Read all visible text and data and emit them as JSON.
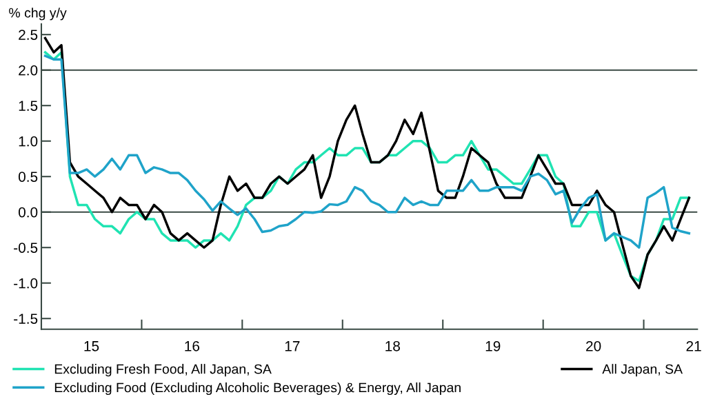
{
  "chart_data": {
    "type": "line",
    "ylabel": "% chg y/y",
    "x": [
      "2015-01-15",
      "2015-02-15",
      "2015-03-15",
      "2015-04-15",
      "2015-05-15",
      "2015-06-15",
      "2015-07-15",
      "2015-08-15",
      "2015-09-15",
      "2015-10-15",
      "2015-11-15",
      "2015-12-15",
      "2016-01-15",
      "2016-02-15",
      "2016-03-15",
      "2016-04-15",
      "2016-05-15",
      "2016-06-15",
      "2016-07-15",
      "2016-08-15",
      "2016-09-15",
      "2016-10-15",
      "2016-11-15",
      "2016-12-15",
      "2017-01-15",
      "2017-02-15",
      "2017-03-15",
      "2017-04-15",
      "2017-05-15",
      "2017-06-15",
      "2017-07-15",
      "2017-08-15",
      "2017-09-15",
      "2017-10-15",
      "2017-11-15",
      "2017-12-15",
      "2018-01-15",
      "2018-02-15",
      "2018-03-15",
      "2018-04-15",
      "2018-05-15",
      "2018-06-15",
      "2018-07-15",
      "2018-08-15",
      "2018-09-15",
      "2018-10-15",
      "2018-11-15",
      "2018-12-15",
      "2019-01-15",
      "2019-02-15",
      "2019-03-15",
      "2019-04-15",
      "2019-05-15",
      "2019-06-15",
      "2019-07-15",
      "2019-08-15",
      "2019-09-15",
      "2019-10-15",
      "2019-11-15",
      "2019-12-15",
      "2020-01-15",
      "2020-02-15",
      "2020-03-15",
      "2020-04-15",
      "2020-05-15",
      "2020-06-15",
      "2020-07-15",
      "2020-08-15",
      "2020-09-15",
      "2020-10-15",
      "2020-11-15",
      "2020-12-15",
      "2021-01-15",
      "2021-02-15",
      "2021-03-15",
      "2021-04-15",
      "2021-05-15",
      "2021-06-15"
    ],
    "series": [
      {
        "name": "Excluding Fresh Food, All Japan, SA",
        "color": "#20e3b2",
        "values": [
          2.25,
          2.15,
          2.25,
          0.5,
          0.1,
          0.1,
          -0.1,
          -0.2,
          -0.2,
          -0.3,
          -0.1,
          0.0,
          -0.1,
          -0.1,
          -0.3,
          -0.4,
          -0.4,
          -0.4,
          -0.5,
          -0.4,
          -0.4,
          -0.3,
          -0.4,
          -0.2,
          0.1,
          0.2,
          0.2,
          0.3,
          0.5,
          0.4,
          0.6,
          0.7,
          0.7,
          0.8,
          0.9,
          0.8,
          0.8,
          0.9,
          0.9,
          0.7,
          0.7,
          0.8,
          0.8,
          0.9,
          1.0,
          1.0,
          0.9,
          0.7,
          0.7,
          0.8,
          0.8,
          1.0,
          0.8,
          0.6,
          0.6,
          0.5,
          0.4,
          0.4,
          0.6,
          0.8,
          0.8,
          0.5,
          0.4,
          -0.2,
          -0.2,
          0.0,
          0.0,
          -0.4,
          -0.3,
          -0.6,
          -0.9,
          -0.97,
          -0.6,
          -0.4,
          -0.1,
          -0.1,
          0.2,
          0.2
        ]
      },
      {
        "name": "All Japan, SA",
        "color": "#000000",
        "values": [
          2.45,
          2.25,
          2.35,
          0.7,
          0.5,
          0.4,
          0.3,
          0.2,
          0.0,
          0.2,
          0.1,
          0.1,
          -0.1,
          0.1,
          0.0,
          -0.3,
          -0.4,
          -0.3,
          -0.4,
          -0.5,
          -0.4,
          0.1,
          0.5,
          0.3,
          0.4,
          0.2,
          0.2,
          0.4,
          0.5,
          0.4,
          0.5,
          0.6,
          0.8,
          0.2,
          0.5,
          1.0,
          1.3,
          1.5,
          1.1,
          0.7,
          0.7,
          0.8,
          1.0,
          1.3,
          1.1,
          1.4,
          0.85,
          0.3,
          0.2,
          0.2,
          0.5,
          0.9,
          0.8,
          0.7,
          0.4,
          0.2,
          0.2,
          0.2,
          0.5,
          0.8,
          0.6,
          0.4,
          0.4,
          0.1,
          0.1,
          0.1,
          0.3,
          0.1,
          0.0,
          -0.45,
          -0.9,
          -1.07,
          -0.6,
          -0.4,
          -0.2,
          -0.4,
          -0.1,
          0.2
        ]
      },
      {
        "name": "Excluding Food (Excluding Alcoholic Beverages) & Energy, All Japan",
        "color": "#1fa3c9",
        "values": [
          2.2,
          2.15,
          2.15,
          0.55,
          0.55,
          0.6,
          0.5,
          0.6,
          0.75,
          0.6,
          0.8,
          0.8,
          0.55,
          0.63,
          0.6,
          0.55,
          0.55,
          0.45,
          0.3,
          0.18,
          0.02,
          0.15,
          0.05,
          -0.04,
          0.05,
          -0.1,
          -0.28,
          -0.26,
          -0.2,
          -0.18,
          -0.1,
          0.0,
          -0.01,
          0.01,
          0.11,
          0.1,
          0.15,
          0.35,
          0.3,
          0.15,
          0.1,
          0.0,
          0.0,
          0.2,
          0.1,
          0.15,
          0.1,
          0.1,
          0.3,
          0.3,
          0.3,
          0.45,
          0.3,
          0.3,
          0.35,
          0.35,
          0.35,
          0.3,
          0.5,
          0.54,
          0.45,
          0.25,
          0.3,
          -0.15,
          0.05,
          0.2,
          0.25,
          -0.4,
          -0.3,
          -0.35,
          -0.4,
          -0.5,
          0.2,
          0.27,
          0.35,
          -0.22,
          -0.27,
          -0.3
        ]
      }
    ],
    "xlim": [
      "2015-01-01",
      "2021-07-15"
    ],
    "xticks": [
      {
        "value": "2015-01-01",
        "label": null
      },
      {
        "value": "2015-07-02",
        "label": "15"
      },
      {
        "value": "2016-01-01",
        "label": null
      },
      {
        "value": "2016-07-02",
        "label": "16"
      },
      {
        "value": "2017-01-01",
        "label": null
      },
      {
        "value": "2017-07-02",
        "label": "17"
      },
      {
        "value": "2018-01-01",
        "label": null
      },
      {
        "value": "2018-07-02",
        "label": "18"
      },
      {
        "value": "2019-01-01",
        "label": null
      },
      {
        "value": "2019-07-02",
        "label": "19"
      },
      {
        "value": "2020-01-01",
        "label": null
      },
      {
        "value": "2020-07-02",
        "label": "20"
      },
      {
        "value": "2021-01-01",
        "label": null
      },
      {
        "value": "2021-07-02",
        "label": "21"
      }
    ],
    "ylim": [
      -1.65,
      2.65
    ],
    "yticks": [
      2.5,
      {
        "value": 2.0,
        "label": "2.0"
      },
      1.5,
      {
        "value": 1.0,
        "label": "1.0"
      },
      0.5,
      {
        "value": 0.0,
        "label": "0.0"
      },
      {
        "value": -0.5,
        "label": "-0.5"
      },
      {
        "value": -1.0,
        "label": "-1.0"
      },
      {
        "value": -1.5,
        "label": "-1.5"
      }
    ],
    "ref_lines": [
      {
        "axis": "y",
        "value": 0,
        "color": "#3a4a44"
      },
      {
        "axis": "y",
        "value": 2.0,
        "color": "#3a4a44"
      }
    ],
    "legend": "bottom",
    "grid": false,
    "marker": "none",
    "line_style": "solid"
  }
}
